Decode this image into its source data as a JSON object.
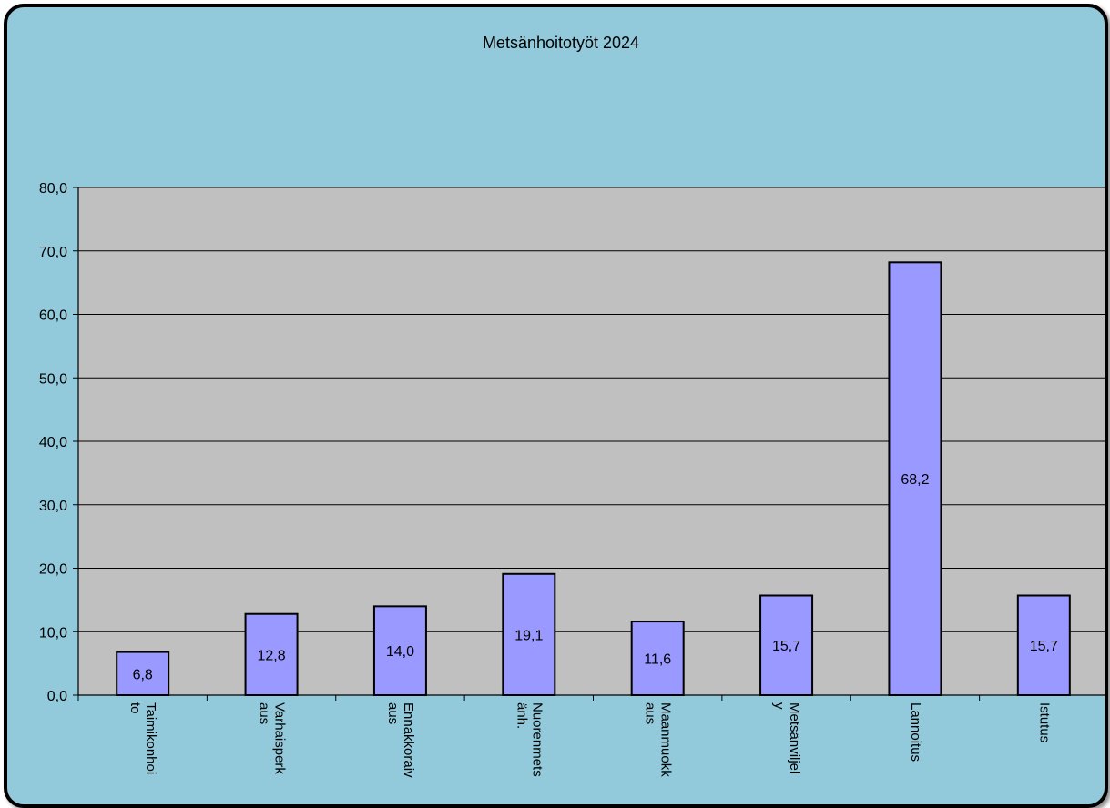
{
  "chart_data": {
    "type": "bar",
    "title": "Metsänhoitotyöt 2024",
    "categories": [
      [
        "Taimikonhoi",
        "to"
      ],
      [
        "Varhaisperk",
        "aus"
      ],
      [
        "Ennakkoraiv",
        "aus"
      ],
      [
        "Nuorenmets",
        "änh."
      ],
      [
        "Maanmuokk",
        "aus"
      ],
      [
        "Metsänviljel",
        "y"
      ],
      [
        "Lannoitus"
      ],
      [
        "Istutus"
      ]
    ],
    "values": [
      6.8,
      12.8,
      14.0,
      19.1,
      11.6,
      15.7,
      68.2,
      15.7
    ],
    "data_labels": [
      "6,8",
      "12,8",
      "14,0",
      "19,1",
      "11,6",
      "15,7",
      "68,2",
      "15,7"
    ],
    "y_ticks": [
      "0,0",
      "10,0",
      "20,0",
      "30,0",
      "40,0",
      "50,0",
      "60,0",
      "70,0",
      "80,0"
    ],
    "ylim": [
      0,
      80
    ],
    "xlabel": "",
    "ylabel": "",
    "grid": true,
    "legend": "none",
    "colors": {
      "background": "#92cadc",
      "plot_area": "#c0c0c0",
      "bar_fill": "#9999ff",
      "bar_stroke": "#000000",
      "gridline": "#000000"
    }
  }
}
